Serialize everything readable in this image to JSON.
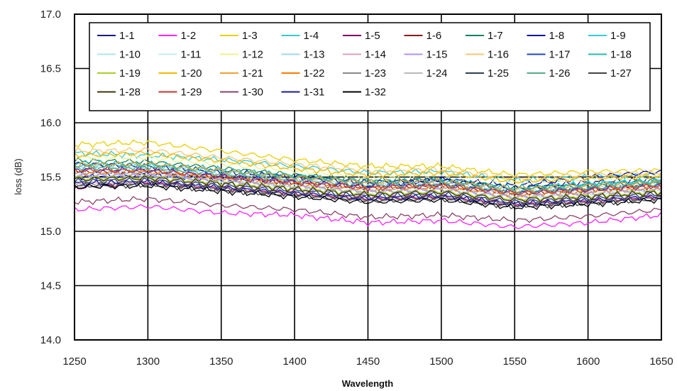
{
  "chart_data": {
    "type": "line",
    "xlabel": "Wavelength",
    "ylabel": "loss (dB)",
    "xlim": [
      1250,
      1650
    ],
    "ylim": [
      14.0,
      17.0
    ],
    "x_ticks": [
      "1250",
      "1300",
      "1350",
      "1400",
      "1450",
      "1500",
      "1550",
      "1600",
      "1650"
    ],
    "y_ticks": [
      "14.0",
      "14.5",
      "15.0",
      "15.5",
      "16.0",
      "16.5",
      "17.0"
    ],
    "grid": true,
    "legend_position": "top",
    "x": [
      1250,
      1300,
      1350,
      1400,
      1450,
      1500,
      1550,
      1600,
      1650
    ],
    "series": [
      {
        "name": "1-1",
        "color": "#1a1a80",
        "values": [
          15.62,
          15.6,
          15.55,
          15.5,
          15.45,
          15.47,
          15.4,
          15.45,
          15.48
        ]
      },
      {
        "name": "1-2",
        "color": "#ff22ff",
        "values": [
          15.2,
          15.23,
          15.17,
          15.15,
          15.08,
          15.1,
          15.04,
          15.08,
          15.15
        ]
      },
      {
        "name": "1-3",
        "color": "#e8d000",
        "values": [
          15.8,
          15.82,
          15.74,
          15.66,
          15.6,
          15.6,
          15.52,
          15.55,
          15.56
        ]
      },
      {
        "name": "1-4",
        "color": "#33cccc",
        "values": [
          15.72,
          15.7,
          15.66,
          15.6,
          15.54,
          15.55,
          15.47,
          15.5,
          15.52
        ]
      },
      {
        "name": "1-5",
        "color": "#800060",
        "values": [
          15.4,
          15.45,
          15.4,
          15.35,
          15.3,
          15.32,
          15.25,
          15.28,
          15.32
        ]
      },
      {
        "name": "1-6",
        "color": "#8b1a1a",
        "values": [
          15.55,
          15.55,
          15.5,
          15.45,
          15.4,
          15.42,
          15.35,
          15.38,
          15.42
        ]
      },
      {
        "name": "1-7",
        "color": "#108060",
        "values": [
          15.65,
          15.64,
          15.58,
          15.52,
          15.47,
          15.48,
          15.4,
          15.42,
          15.46
        ]
      },
      {
        "name": "1-8",
        "color": "#1010b0",
        "values": [
          15.5,
          15.52,
          15.48,
          15.45,
          15.42,
          15.48,
          15.42,
          15.5,
          15.55
        ]
      },
      {
        "name": "1-9",
        "color": "#33ccdd",
        "values": [
          15.6,
          15.6,
          15.55,
          15.5,
          15.46,
          15.47,
          15.4,
          15.44,
          15.47
        ]
      },
      {
        "name": "1-10",
        "color": "#aee3f2",
        "values": [
          15.53,
          15.53,
          15.48,
          15.43,
          15.38,
          15.4,
          15.33,
          15.36,
          15.4
        ]
      },
      {
        "name": "1-11",
        "color": "#c8eaf4",
        "values": [
          15.47,
          15.48,
          15.43,
          15.38,
          15.33,
          15.35,
          15.28,
          15.31,
          15.35
        ]
      },
      {
        "name": "1-12",
        "color": "#f2f08a",
        "values": [
          15.68,
          15.68,
          15.62,
          15.56,
          15.5,
          15.52,
          15.45,
          15.48,
          15.5
        ]
      },
      {
        "name": "1-13",
        "color": "#a0d8e8",
        "values": [
          15.58,
          15.57,
          15.52,
          15.47,
          15.43,
          15.44,
          15.37,
          15.4,
          15.44
        ]
      },
      {
        "name": "1-14",
        "color": "#d9a0b8",
        "values": [
          15.45,
          15.46,
          15.41,
          15.36,
          15.31,
          15.33,
          15.26,
          15.29,
          15.33
        ]
      },
      {
        "name": "1-15",
        "color": "#b090ff",
        "values": [
          15.51,
          15.51,
          15.46,
          15.41,
          15.36,
          15.38,
          15.31,
          15.34,
          15.38
        ]
      },
      {
        "name": "1-16",
        "color": "#f5c870",
        "values": [
          15.74,
          15.75,
          15.68,
          15.62,
          15.56,
          15.57,
          15.49,
          15.52,
          15.54
        ]
      },
      {
        "name": "1-17",
        "color": "#2244cc",
        "values": [
          15.57,
          15.56,
          15.51,
          15.46,
          15.41,
          15.43,
          15.36,
          15.39,
          15.43
        ]
      },
      {
        "name": "1-18",
        "color": "#22bbaa",
        "values": [
          15.63,
          15.62,
          15.57,
          15.51,
          15.46,
          15.47,
          15.4,
          15.43,
          15.46
        ]
      },
      {
        "name": "1-19",
        "color": "#aacc22",
        "values": [
          15.49,
          15.5,
          15.45,
          15.4,
          15.35,
          15.37,
          15.3,
          15.33,
          15.37
        ]
      },
      {
        "name": "1-20",
        "color": "#f5b800",
        "values": [
          15.7,
          15.72,
          15.65,
          15.58,
          15.52,
          15.54,
          15.46,
          15.49,
          15.51
        ]
      },
      {
        "name": "1-21",
        "color": "#f0a030",
        "values": [
          15.61,
          15.62,
          15.56,
          15.5,
          15.45,
          15.46,
          15.39,
          15.42,
          15.45
        ]
      },
      {
        "name": "1-22",
        "color": "#ff7a00",
        "values": [
          15.54,
          15.55,
          15.49,
          15.44,
          15.39,
          15.41,
          15.34,
          15.37,
          15.41
        ]
      },
      {
        "name": "1-23",
        "color": "#888888",
        "values": [
          15.43,
          15.44,
          15.39,
          15.34,
          15.29,
          15.31,
          15.24,
          15.27,
          15.31
        ]
      },
      {
        "name": "1-24",
        "color": "#b8b8b8",
        "values": [
          15.52,
          15.52,
          15.47,
          15.42,
          15.37,
          15.39,
          15.32,
          15.35,
          15.39
        ]
      },
      {
        "name": "1-25",
        "color": "#2f3f55",
        "values": [
          15.46,
          15.47,
          15.42,
          15.37,
          15.32,
          15.34,
          15.27,
          15.3,
          15.34
        ]
      },
      {
        "name": "1-26",
        "color": "#55aa88",
        "values": [
          15.59,
          15.59,
          15.53,
          15.48,
          15.43,
          15.44,
          15.37,
          15.4,
          15.44
        ]
      },
      {
        "name": "1-27",
        "color": "#444444",
        "values": [
          15.42,
          15.43,
          15.38,
          15.33,
          15.28,
          15.3,
          15.23,
          15.26,
          15.3
        ]
      },
      {
        "name": "1-28",
        "color": "#3a3a12",
        "values": [
          15.48,
          15.49,
          15.44,
          15.39,
          15.34,
          15.36,
          15.29,
          15.32,
          15.36
        ]
      },
      {
        "name": "1-29",
        "color": "#cc3333",
        "values": [
          15.56,
          15.56,
          15.5,
          15.45,
          15.4,
          15.42,
          15.35,
          15.38,
          15.42
        ]
      },
      {
        "name": "1-30",
        "color": "#884466",
        "values": [
          15.27,
          15.3,
          15.24,
          15.2,
          15.13,
          15.15,
          15.1,
          15.14,
          15.2
        ]
      },
      {
        "name": "1-31",
        "color": "#1a1a99",
        "values": [
          15.44,
          15.45,
          15.4,
          15.35,
          15.3,
          15.32,
          15.25,
          15.28,
          15.32
        ]
      },
      {
        "name": "1-32",
        "color": "#000000",
        "values": [
          15.41,
          15.42,
          15.37,
          15.32,
          15.27,
          15.29,
          15.22,
          15.25,
          15.29
        ]
      }
    ]
  }
}
